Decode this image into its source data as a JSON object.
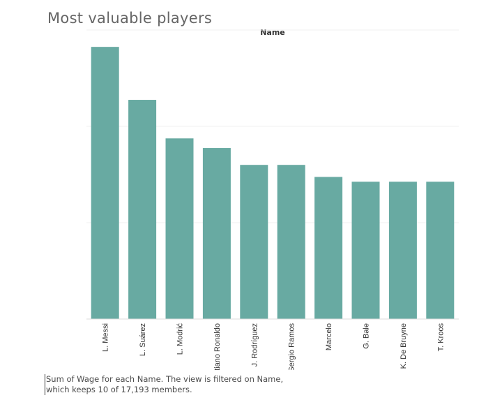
{
  "chart_data": {
    "type": "bar",
    "title": "Most valuable players",
    "column_header": "Name",
    "categories": [
      "L. Messi",
      "L. Suárez",
      "L. Modrić",
      "Cristiano Ronaldo",
      "J. Rodríguez",
      "Sergio Ramos",
      "Marcelo",
      "G. Bale",
      "K. De Bruyne",
      "T. Kroos"
    ],
    "series": [
      {
        "values": [
          565,
          455,
          375,
          355,
          320,
          320,
          295,
          285,
          285,
          285
        ]
      }
    ],
    "ylim": [
      0,
      600
    ],
    "y_gridlines": [
      200,
      400,
      600
    ],
    "grid": true,
    "legend": "none",
    "bar_color": "#68aaa2",
    "caption": [
      "Sum of Wage for each Name. The view is filtered on Name,",
      "which keeps 10 of 17,193 members."
    ]
  }
}
